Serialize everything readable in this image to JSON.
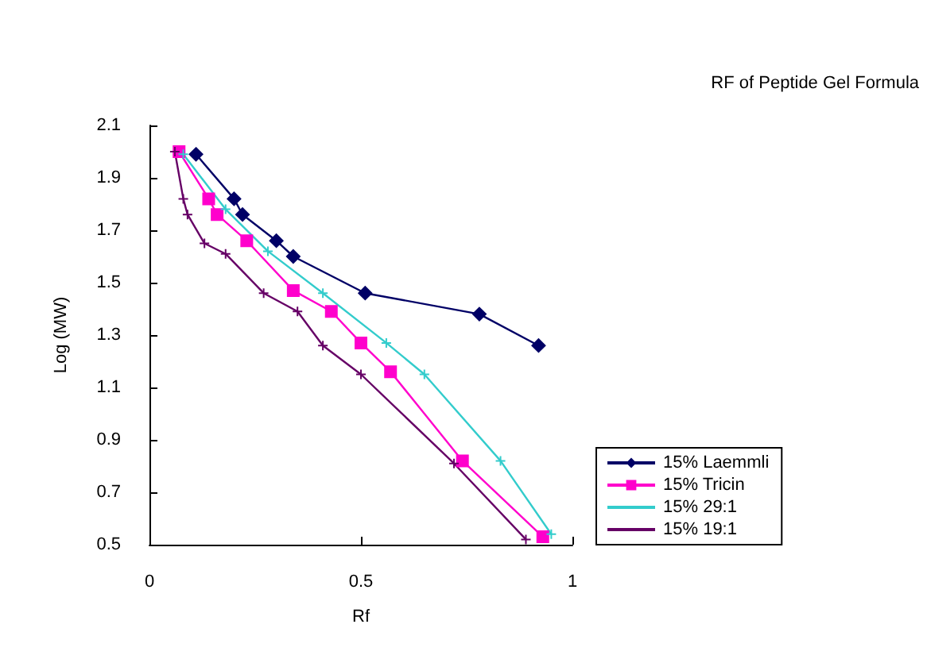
{
  "chart_data": {
    "type": "line",
    "title": "RF of Peptide Gel Formula",
    "xlabel": "Rf",
    "ylabel": "Log (MW)",
    "xlim": [
      0,
      1
    ],
    "xticks": [
      0,
      0.5,
      1
    ],
    "ylim": [
      0.5,
      2.1
    ],
    "yticks": [
      0.5,
      0.7,
      0.9,
      1.1,
      1.3,
      1.5,
      1.7,
      1.9,
      2.1
    ],
    "grid": false,
    "legend": "right",
    "line_style": "solid",
    "series": [
      {
        "name": "15% Laemmli",
        "color": "#000066",
        "marker": "diamond",
        "x": [
          0.11,
          0.2,
          0.22,
          0.3,
          0.34,
          0.51,
          0.78,
          0.92
        ],
        "values": [
          1.99,
          1.82,
          1.76,
          1.66,
          1.6,
          1.46,
          1.38,
          1.26
        ]
      },
      {
        "name": "15% Tricin",
        "color": "#ff00cc",
        "marker": "square",
        "x": [
          0.07,
          0.14,
          0.16,
          0.23,
          0.34,
          0.43,
          0.5,
          0.57,
          0.74,
          0.93
        ],
        "values": [
          2.0,
          1.82,
          1.76,
          1.66,
          1.47,
          1.39,
          1.27,
          1.16,
          0.82,
          0.53
        ]
      },
      {
        "name": "15% 29:1",
        "color": "#33cccc",
        "marker": "cross",
        "x": [
          0.08,
          0.18,
          0.28,
          0.41,
          0.56,
          0.65,
          0.83,
          0.95
        ],
        "values": [
          1.99,
          1.78,
          1.62,
          1.46,
          1.27,
          1.15,
          0.82,
          0.54
        ]
      },
      {
        "name": "15% 19:1",
        "color": "#660066",
        "marker": "cross",
        "x": [
          0.06,
          0.08,
          0.09,
          0.13,
          0.18,
          0.27,
          0.35,
          0.41,
          0.5,
          0.72,
          0.89
        ],
        "values": [
          2.0,
          1.82,
          1.76,
          1.65,
          1.61,
          1.46,
          1.39,
          1.26,
          1.15,
          0.81,
          0.52
        ]
      }
    ]
  }
}
